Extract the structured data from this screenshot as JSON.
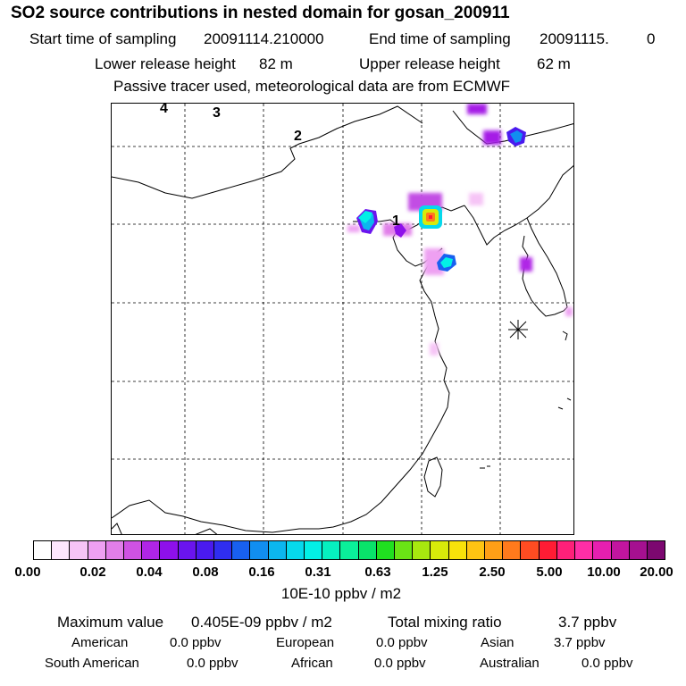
{
  "title": "SO2 source contributions in nested domain for gosan_200911",
  "header": {
    "start_label": "Start time of sampling",
    "start_value": "20091114.210000",
    "end_label": "End time of sampling",
    "end_value": "20091115.",
    "end_extra": "0",
    "lower_label": "Lower release height",
    "lower_value": "82 m",
    "upper_label": "Upper release height",
    "upper_value": "62 m",
    "note": "Passive tracer used, meteorological data are from ECMWF"
  },
  "map": {
    "labels": [
      "4",
      "3",
      "2",
      "1"
    ]
  },
  "colorbar": {
    "colors": [
      "#ffffff",
      "#fde6fd",
      "#f6c4f6",
      "#eea0f2",
      "#e17ee9",
      "#cf52e3",
      "#b025e6",
      "#8e10ea",
      "#6a14ee",
      "#4a1aef",
      "#2f2ef0",
      "#1860f0",
      "#118ef0",
      "#0cb6ee",
      "#06d9ec",
      "#02f0e6",
      "#06f0c0",
      "#0af09a",
      "#09e36a",
      "#20e020",
      "#6ae415",
      "#a8e80f",
      "#d8ea0a",
      "#f8e20a",
      "#ffc412",
      "#ff9f16",
      "#ff7a1c",
      "#ff4c22",
      "#ff1c34",
      "#ff2079",
      "#ff2ea6",
      "#e61fb0",
      "#c2159f",
      "#a51090",
      "#7c0870"
    ],
    "ticks": [
      "0.00",
      "0.02",
      "0.04",
      "0.08",
      "0.16",
      "0.31",
      "0.63",
      "1.25",
      "2.50",
      "5.00",
      "10.00",
      "20.00"
    ],
    "unit": "10E-10 ppbv / m2"
  },
  "stats": {
    "max_label": "Maximum value",
    "max_value": "0.405E-09 ppbv / m2",
    "total_label": "Total mixing ratio",
    "total_value": "3.7 ppbv",
    "regions": [
      {
        "name": "American",
        "value": "0.0 ppbv"
      },
      {
        "name": "European",
        "value": "0.0 ppbv"
      },
      {
        "name": "Asian",
        "value": "3.7 ppbv"
      },
      {
        "name": "South American",
        "value": "0.0 ppbv"
      },
      {
        "name": "African",
        "value": "0.0 ppbv"
      },
      {
        "name": "Australian",
        "value": "0.0 ppbv"
      }
    ]
  }
}
